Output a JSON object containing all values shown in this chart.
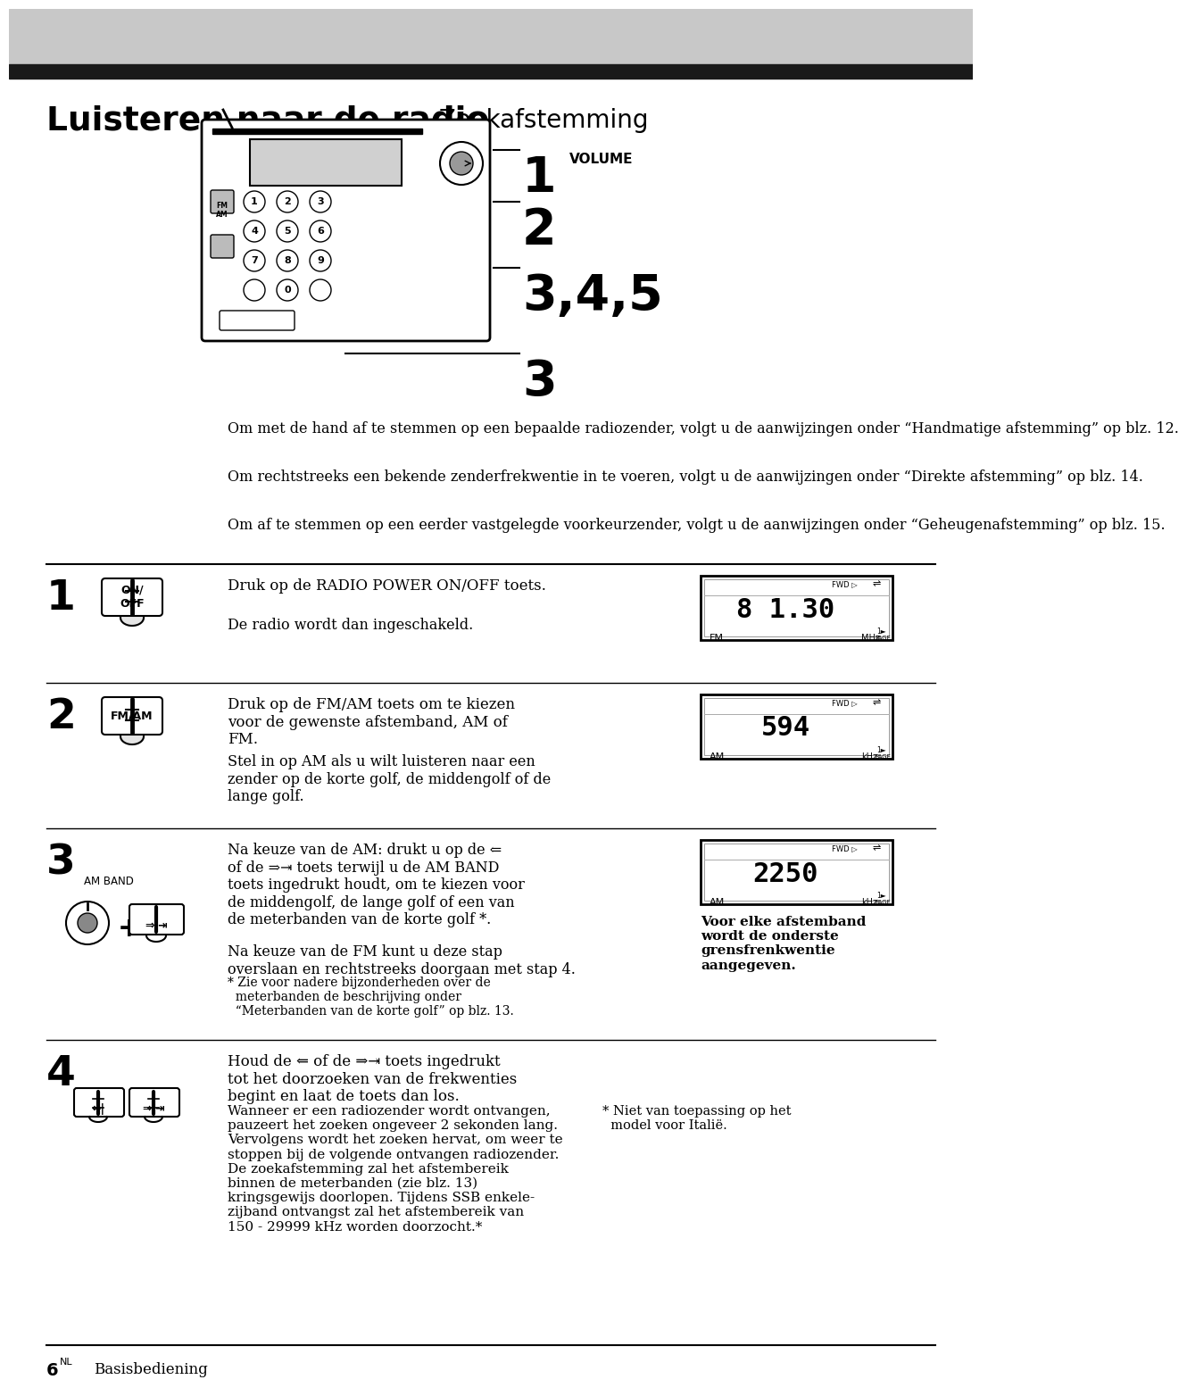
{
  "page_bg": "#ffffff",
  "header_bg": "#c8c8c8",
  "header_bar_bg": "#1a1a1a",
  "title_bold": "Luisteren naar de radio",
  "title_normal": "—Zoekafstemming",
  "intro_paragraphs": [
    "Om met de hand af te stemmen op een bepaalde radiozender, volgt u de aanwijzingen onder “Handmatige afstemming” op blz. 12.",
    "Om rechtstreeks een bekende zenderfrekwentie in te voeren, volgt u de aanwijzingen onder “Direkte afstemming” op blz. 14.",
    "Om af te stemmen op een eerder vastgelegde voorkeurzender, volgt u de aanwijzingen onder “Geheugenafstemming” op blz. 15."
  ],
  "step1_num": "1",
  "step1_btn": "ON/\nOFF",
  "step1_text1": "Druk op de RADIO POWER ON/OFF toets.",
  "step1_text2": "De radio wordt dan ingeschakeld.",
  "step1_band": "FM",
  "step1_freq": "8 1.30",
  "step1_unit": "MHz",
  "step2_num": "2",
  "step2_btn": "FM/AM",
  "step2_text1": "Druk op de FM/AM toets om te kiezen\nvoor de gewenste afstemband, AM of\nFM.",
  "step2_text2": "Stel in op AM als u wilt luisteren naar een\nzender op de korte golf, de middengolf of de\nlange golf.",
  "step2_band": "AM",
  "step2_freq": "594",
  "step2_unit": "kHz",
  "step3_num": "3",
  "step3_label": "AM BAND",
  "step3_text1": "Na keuze van de AM: drukt u op de ⇐\nof de ⇒⇥ toets terwijl u de AM BAND\ntoets ingedrukt houdt, om te kiezen voor\nde middengolf, de lange golf of een van\nde meterbanden van de korte golf *.",
  "step3_text2": "Na keuze van de FM kunt u deze stap\noverslaan en rechtstreeks doorgaan met stap 4.",
  "step3_note": "* Zie voor nadere bijzonderheden over de\n  meterbanden de beschrijving onder\n  “Meterbanden van de korte golf” op blz. 13.",
  "step3_band": "AM",
  "step3_freq": "2250",
  "step3_unit": "kHz",
  "step3_caption": "Voor elke afstemband\nwordt de onderste\ngrensfrenkwentie\naangegeven.",
  "step4_num": "4",
  "step4_text1": "Houd de ⇐ of de ⇒⇥ toets ingedrukt\ntot het doorzoeken van de frekwenties\nbegint en laat de toets dan los.",
  "step4_text2": "Wanneer er een radiozender wordt ontvangen,\npauzeert het zoeken ongeveer 2 sekonden lang.\nVervolgens wordt het zoeken hervat, om weer te\nstoppen bij de volgende ontvangen radiozender.\nDe zoekafstemming zal het afstembereik\nbinnen de meterbanden (zie blz. 13)\nkringsgewijs doorlopen. Tijdens SSB enkele-\nzijband ontvangst zal het afstembereik van\n150 - 29999 kHz worden doorzocht.*",
  "step4_note": "* Niet van toepassing op het\n  model voor Italië.",
  "footer_num": "6",
  "footer_label": "NL",
  "footer_text": "Basisbediening",
  "volume_label": "VOLUME"
}
